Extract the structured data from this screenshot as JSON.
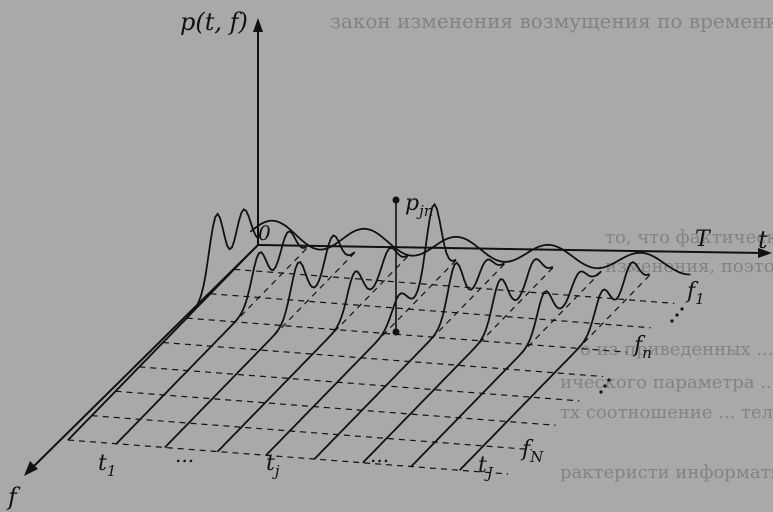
{
  "background_text": {
    "lines": [
      "закон изменения возмущения по времени  ...  позже",
      "то, что фактические значения изменяются в течении",
      "изменения, поэтому необходимо рассчитать составля",
      "о из приведенных ... зависимостей  ...  оп",
      "ического параметра ... одних пе",
      "тх соотношение ... тельно",
      "рактеристи информативной составляющих и хорошо"
    ]
  },
  "diagram": {
    "labels": {
      "y_axis": "p(t, f)",
      "t_axis": "t",
      "f_axis": "f",
      "origin": "0",
      "t_end": "T",
      "point": "p",
      "point_sub": "jn",
      "f1": "f",
      "f1_sub": "1",
      "fn": "f",
      "fn_sub": "n",
      "fN": "f",
      "fN_sub": "N",
      "t1": "t",
      "t1_sub": "1",
      "tj": "t",
      "tj_sub": "j",
      "tJ": "t",
      "tJ_sub": "J",
      "dots1": "...",
      "dots2": "..."
    }
  }
}
